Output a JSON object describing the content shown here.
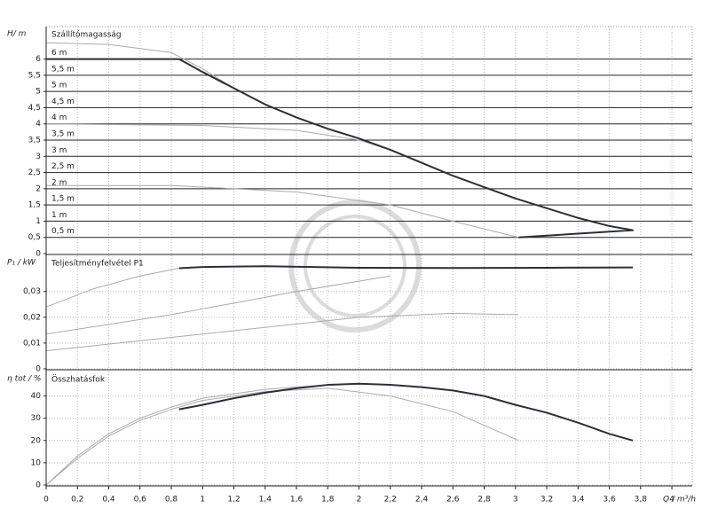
{
  "chart_data": [
    {
      "type": "line",
      "title": "Szállítómagasság",
      "ylabel": "H/ m",
      "xlim": [
        0,
        4.13
      ],
      "ylim": [
        0,
        7
      ],
      "grid": true,
      "yticks": [
        0,
        {
          "value": 0.5,
          "label": "0,5"
        },
        1,
        {
          "value": 1.5,
          "label": "1,5"
        },
        2,
        {
          "value": 2.5,
          "label": "2,5"
        },
        3,
        {
          "value": 3.5,
          "label": "3,5"
        },
        4,
        {
          "value": 4.5,
          "label": "4,5"
        },
        5,
        {
          "value": 5.5,
          "label": "5,5"
        },
        6
      ],
      "levels": [
        {
          "value": 0.5,
          "label": "0,5 m"
        },
        {
          "value": 1,
          "label": "1 m"
        },
        {
          "value": 1.5,
          "label": "1,5 m"
        },
        {
          "value": 2,
          "label": "2 m"
        },
        {
          "value": 2.5,
          "label": "2,5 m"
        },
        {
          "value": 3,
          "label": "3 m"
        },
        {
          "value": 3.5,
          "label": "3,5 m"
        },
        {
          "value": 4,
          "label": "4 m"
        },
        {
          "value": 4.5,
          "label": "4,5 m"
        },
        {
          "value": 5,
          "label": "5 m"
        },
        {
          "value": 5.5,
          "label": "5,5 m"
        },
        {
          "value": 6,
          "label": "6 m"
        }
      ],
      "series": [
        {
          "color": "#aaaaaa",
          "width": 1,
          "x": [
            0,
            0.4,
            0.8,
            1.0,
            1.2
          ],
          "values": [
            6.5,
            6.45,
            6.2,
            5.7,
            5.1
          ]
        },
        {
          "color": "#aaaaaa",
          "width": 1,
          "x": [
            0,
            1.0,
            1.6,
            2.0,
            2.2
          ],
          "values": [
            4.0,
            3.95,
            3.8,
            3.5,
            3.2
          ]
        },
        {
          "color": "#aaaaaa",
          "width": 1,
          "x": [
            0,
            0.8,
            1.6,
            2.2,
            2.6,
            3.02
          ],
          "values": [
            2.1,
            2.1,
            1.9,
            1.5,
            1.0,
            0.5
          ]
        },
        {
          "color": "#2a2f3a",
          "width": 2,
          "x": [
            0,
            0.85,
            1,
            1.2,
            1.4,
            1.6,
            1.8,
            2,
            2.2,
            2.4,
            2.6,
            2.8,
            3,
            3.2,
            3.4,
            3.6,
            3.75,
            3.02
          ],
          "values": [
            6,
            6,
            5.6,
            5.1,
            4.6,
            4.2,
            3.85,
            3.55,
            3.2,
            2.8,
            2.4,
            2.05,
            1.7,
            1.4,
            1.1,
            0.85,
            0.72,
            0.5
          ]
        }
      ]
    },
    {
      "type": "line",
      "title": "Teljesítményfelvétel P1",
      "ylabel": "P₁ / kW",
      "xlim": [
        0,
        4.13
      ],
      "ylim": [
        0,
        0.044
      ],
      "grid": true,
      "yticks": [
        0,
        {
          "value": 0.01,
          "label": "0,01"
        },
        {
          "value": 0.02,
          "label": "0,02"
        },
        {
          "value": 0.03,
          "label": "0,03"
        }
      ],
      "series": [
        {
          "color": "#aaaaaa",
          "width": 1,
          "x": [
            0,
            0.3,
            0.6,
            0.85
          ],
          "values": [
            0.024,
            0.031,
            0.036,
            0.039
          ]
        },
        {
          "color": "#aaaaaa",
          "width": 1,
          "x": [
            0,
            0.8,
            1.6,
            2.2
          ],
          "values": [
            0.0135,
            0.021,
            0.03,
            0.036
          ]
        },
        {
          "color": "#aaaaaa",
          "width": 1,
          "x": [
            0,
            1.0,
            2.0,
            2.6,
            3.02
          ],
          "values": [
            0.007,
            0.0135,
            0.02,
            0.0215,
            0.021
          ]
        },
        {
          "color": "#2a2f3a",
          "width": 2,
          "x": [
            0.85,
            1,
            1.4,
            2,
            2.6,
            3.2,
            3.75
          ],
          "values": [
            0.039,
            0.0395,
            0.0398,
            0.0392,
            0.0391,
            0.0392,
            0.0393
          ]
        }
      ]
    },
    {
      "type": "line",
      "title": "Összhatásfok",
      "ylabel": "η tot / %",
      "xlabel": "Q / m³/h",
      "xlim": [
        0,
        4.13
      ],
      "ylim": [
        0,
        51
      ],
      "grid": true,
      "yticks": [
        0,
        10,
        20,
        30,
        40
      ],
      "xticks": [
        0,
        {
          "value": 0.2,
          "label": "0,2"
        },
        {
          "value": 0.4,
          "label": "0,4"
        },
        {
          "value": 0.6,
          "label": "0,6"
        },
        {
          "value": 0.8,
          "label": "0,8"
        },
        1,
        {
          "value": 1.2,
          "label": "1,2"
        },
        {
          "value": 1.4,
          "label": "1,4"
        },
        {
          "value": 1.6,
          "label": "1,6"
        },
        {
          "value": 1.8,
          "label": "1,8"
        },
        2,
        {
          "value": 2.2,
          "label": "2,2"
        },
        {
          "value": 2.4,
          "label": "2,4"
        },
        {
          "value": 2.6,
          "label": "2,6"
        },
        {
          "value": 2.8,
          "label": "2,8"
        },
        3,
        {
          "value": 3.2,
          "label": "3,2"
        },
        {
          "value": 3.4,
          "label": "3,4"
        },
        {
          "value": 3.6,
          "label": "3,6"
        },
        {
          "value": 3.8,
          "label": "3,8"
        },
        4
      ],
      "series": [
        {
          "color": "#aaaaaa",
          "width": 1,
          "x": [
            0,
            0.2,
            0.4,
            0.6,
            0.8,
            1,
            1.4,
            1.8,
            2.2,
            2.6,
            3.02
          ],
          "values": [
            0,
            12,
            22,
            29,
            34,
            38,
            42,
            43.5,
            40,
            33,
            20
          ]
        },
        {
          "color": "#aaaaaa",
          "width": 1,
          "x": [
            0,
            0.2,
            0.4,
            0.6,
            0.8,
            1,
            1.4,
            1.8
          ],
          "values": [
            0,
            13,
            23,
            30,
            35,
            39,
            43,
            45
          ]
        },
        {
          "color": "#2a2f3a",
          "width": 2,
          "x": [
            0.85,
            1,
            1.2,
            1.4,
            1.6,
            1.8,
            2,
            2.2,
            2.4,
            2.6,
            2.8,
            3,
            3.2,
            3.4,
            3.6,
            3.75
          ],
          "values": [
            34,
            36,
            39,
            41.5,
            43.5,
            45,
            45.5,
            45,
            44,
            42.5,
            40,
            36,
            32.5,
            28,
            23,
            20
          ]
        }
      ]
    }
  ]
}
